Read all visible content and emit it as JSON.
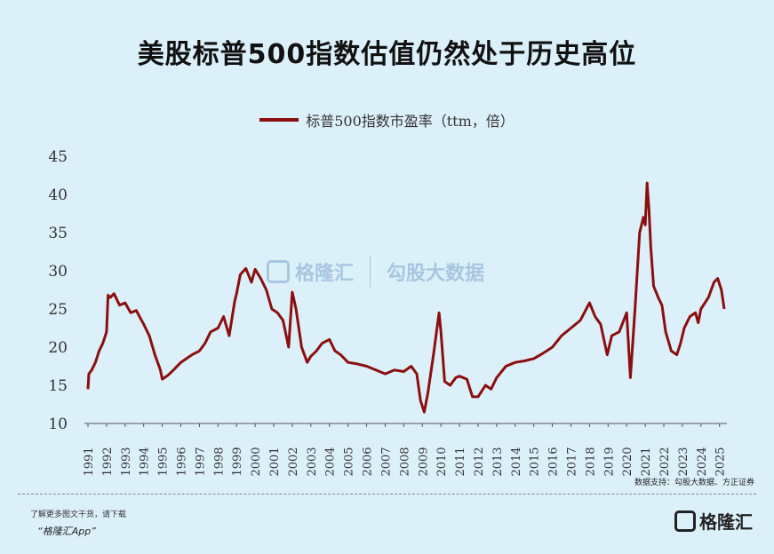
{
  "title": "美股标普500指数估值仍然处于历史高位",
  "legend_label": "标普500指数市盈率（ttm，倍）",
  "watermark": {
    "brand": "格隆汇",
    "brand2": "勾股大数据"
  },
  "source": "数据支持：勾股大数据、方正证券",
  "footer": {
    "line1": "了解更多图文干货，请下载",
    "line2": "“格隆汇App”"
  },
  "brand": "格隆汇",
  "colors": {
    "line": "#8b0f0f",
    "background": "#dcf0fa"
  },
  "chart_data": {
    "type": "line",
    "title": "美股标普500指数估值仍然处于历史高位",
    "series": [
      {
        "name": "标普500指数市盈率（ttm，倍）",
        "points": [
          [
            1991.0,
            14.5
          ],
          [
            1991.05,
            16.5
          ],
          [
            1991.2,
            17.0
          ],
          [
            1991.4,
            18.0
          ],
          [
            1991.6,
            19.5
          ],
          [
            1991.8,
            20.5
          ],
          [
            1992.0,
            22.0
          ],
          [
            1992.08,
            26.8
          ],
          [
            1992.2,
            26.5
          ],
          [
            1992.4,
            27.0
          ],
          [
            1992.7,
            25.5
          ],
          [
            1993.0,
            25.8
          ],
          [
            1993.3,
            24.5
          ],
          [
            1993.6,
            24.8
          ],
          [
            1994.0,
            23.0
          ],
          [
            1994.3,
            21.5
          ],
          [
            1994.6,
            19.0
          ],
          [
            1994.9,
            17.0
          ],
          [
            1995.0,
            15.8
          ],
          [
            1995.3,
            16.3
          ],
          [
            1995.6,
            17.0
          ],
          [
            1996.0,
            18.0
          ],
          [
            1996.3,
            18.5
          ],
          [
            1996.6,
            19.0
          ],
          [
            1997.0,
            19.5
          ],
          [
            1997.3,
            20.5
          ],
          [
            1997.6,
            22.0
          ],
          [
            1998.0,
            22.5
          ],
          [
            1998.3,
            24.0
          ],
          [
            1998.6,
            21.5
          ],
          [
            1998.9,
            26.0
          ],
          [
            1999.0,
            27.0
          ],
          [
            1999.2,
            29.5
          ],
          [
            1999.5,
            30.3
          ],
          [
            1999.8,
            28.5
          ],
          [
            2000.0,
            30.2
          ],
          [
            2000.3,
            29.0
          ],
          [
            2000.6,
            27.5
          ],
          [
            2000.9,
            25.0
          ],
          [
            2001.2,
            24.5
          ],
          [
            2001.5,
            23.5
          ],
          [
            2001.8,
            20.0
          ],
          [
            2002.0,
            27.2
          ],
          [
            2002.2,
            25.0
          ],
          [
            2002.5,
            20.0
          ],
          [
            2002.8,
            18.0
          ],
          [
            2003.0,
            18.8
          ],
          [
            2003.3,
            19.5
          ],
          [
            2003.6,
            20.5
          ],
          [
            2004.0,
            21.0
          ],
          [
            2004.3,
            19.5
          ],
          [
            2004.6,
            19.0
          ],
          [
            2005.0,
            18.0
          ],
          [
            2005.5,
            17.8
          ],
          [
            2006.0,
            17.5
          ],
          [
            2006.5,
            17.0
          ],
          [
            2007.0,
            16.5
          ],
          [
            2007.5,
            17.0
          ],
          [
            2008.0,
            16.8
          ],
          [
            2008.4,
            17.5
          ],
          [
            2008.7,
            16.5
          ],
          [
            2008.9,
            13.0
          ],
          [
            2009.1,
            11.5
          ],
          [
            2009.3,
            14.0
          ],
          [
            2009.6,
            19.0
          ],
          [
            2009.9,
            24.5
          ],
          [
            2010.0,
            22.0
          ],
          [
            2010.2,
            15.5
          ],
          [
            2010.5,
            15.0
          ],
          [
            2010.8,
            16.0
          ],
          [
            2011.0,
            16.2
          ],
          [
            2011.4,
            15.8
          ],
          [
            2011.7,
            13.5
          ],
          [
            2012.0,
            13.5
          ],
          [
            2012.4,
            15.0
          ],
          [
            2012.7,
            14.5
          ],
          [
            2013.0,
            16.0
          ],
          [
            2013.5,
            17.5
          ],
          [
            2014.0,
            18.0
          ],
          [
            2014.5,
            18.2
          ],
          [
            2015.0,
            18.5
          ],
          [
            2015.5,
            19.2
          ],
          [
            2016.0,
            20.0
          ],
          [
            2016.5,
            21.5
          ],
          [
            2017.0,
            22.5
          ],
          [
            2017.5,
            23.5
          ],
          [
            2018.0,
            25.8
          ],
          [
            2018.3,
            24.0
          ],
          [
            2018.6,
            23.0
          ],
          [
            2018.95,
            19.0
          ],
          [
            2019.2,
            21.5
          ],
          [
            2019.6,
            22.0
          ],
          [
            2020.0,
            24.5
          ],
          [
            2020.2,
            16.0
          ],
          [
            2020.45,
            25.0
          ],
          [
            2020.7,
            35.0
          ],
          [
            2020.9,
            37.0
          ],
          [
            2021.0,
            36.0
          ],
          [
            2021.1,
            41.5
          ],
          [
            2021.2,
            38.0
          ],
          [
            2021.3,
            33.0
          ],
          [
            2021.45,
            28.0
          ],
          [
            2021.7,
            26.5
          ],
          [
            2021.9,
            25.5
          ],
          [
            2022.1,
            22.0
          ],
          [
            2022.4,
            19.5
          ],
          [
            2022.7,
            19.0
          ],
          [
            2022.9,
            20.5
          ],
          [
            2023.1,
            22.5
          ],
          [
            2023.4,
            24.0
          ],
          [
            2023.7,
            24.5
          ],
          [
            2023.85,
            23.2
          ],
          [
            2024.0,
            25.0
          ],
          [
            2024.4,
            26.5
          ],
          [
            2024.7,
            28.5
          ],
          [
            2024.9,
            29.0
          ],
          [
            2025.1,
            27.5
          ],
          [
            2025.25,
            25.0
          ]
        ]
      }
    ],
    "xlim": [
      1991,
      2025.3
    ],
    "ylim": [
      10,
      45
    ],
    "yticks": [
      10,
      15,
      20,
      25,
      30,
      35,
      40,
      45
    ],
    "xticks": [
      "1991",
      "1992",
      "1993",
      "1994",
      "1995",
      "1996",
      "1997",
      "1998",
      "1999",
      "2000",
      "2001",
      "2002",
      "2003",
      "2004",
      "2005",
      "2006",
      "2007",
      "2008",
      "2009",
      "2010",
      "2011",
      "2012",
      "2013",
      "2014",
      "2015",
      "2016",
      "2017",
      "2018",
      "2019",
      "2020",
      "2021",
      "2022",
      "2023",
      "2024",
      "2025"
    ],
    "grid": false,
    "legend_position": "top-center"
  }
}
